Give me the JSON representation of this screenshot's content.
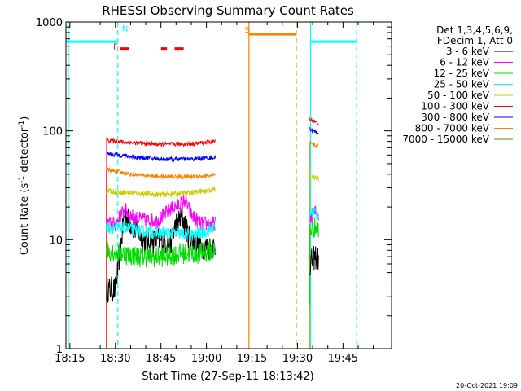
{
  "chart_data": {
    "type": "line",
    "title": "RHESSI Observing Summary Count Rates",
    "xlabel": "Start Time (27-Sep-11 18:13:42)",
    "ylabel_parts": [
      "Count Rate (s",
      "-1",
      " detector",
      "-1",
      ")"
    ],
    "yscale": "log",
    "ylim": [
      1,
      1000
    ],
    "xlim_minutes": [
      1093.7,
      1201.0
    ],
    "x_ticks": [
      {
        "m": 1095,
        "label": "18:15"
      },
      {
        "m": 1110,
        "label": "18:30"
      },
      {
        "m": 1125,
        "label": "18:45"
      },
      {
        "m": 1140,
        "label": "19:00"
      },
      {
        "m": 1155,
        "label": "19:15"
      },
      {
        "m": 1170,
        "label": "19:30"
      },
      {
        "m": 1185,
        "label": "19:45"
      }
    ],
    "y_ticks": [
      {
        "v": 1,
        "label": "1"
      },
      {
        "v": 10,
        "label": "10"
      },
      {
        "v": 100,
        "label": "100"
      },
      {
        "v": 1000,
        "label": "1000"
      }
    ],
    "legend": {
      "position": "right",
      "header": [
        "Det 1,3,4,5,6,9,",
        "FDecim 1, Att 0"
      ],
      "entries": [
        {
          "label": "3 - 6 keV",
          "color": "#000000"
        },
        {
          "label": "6 - 12 keV",
          "color": "#ff00ff"
        },
        {
          "label": "12 - 25 keV",
          "color": "#00dd00"
        },
        {
          "label": "25 - 50 keV",
          "color": "#00ffff"
        },
        {
          "label": "50 - 100 keV",
          "color": "#cccc00"
        },
        {
          "label": "100 - 300 keV",
          "color": "#ff0000"
        },
        {
          "label": "300 - 800 keV",
          "color": "#0000ff"
        },
        {
          "label": "800 - 7000 keV",
          "color": "#ff8000"
        },
        {
          "label": "7000 - 15000 keV",
          "color": "#808000"
        }
      ]
    },
    "segments": [
      {
        "start": 1107.0,
        "end": 1143.0
      },
      {
        "start": 1174.0,
        "end": 1177.0
      }
    ],
    "series": [
      {
        "name": "3 - 6 keV",
        "color": "#000000",
        "noise": 0.12,
        "points": [
          [
            1107.2,
            3.5
          ],
          [
            1110,
            3.5
          ],
          [
            1113,
            17
          ],
          [
            1116,
            13
          ],
          [
            1120,
            9.5
          ],
          [
            1125,
            10
          ],
          [
            1128,
            9
          ],
          [
            1130,
            14
          ],
          [
            1132,
            16
          ],
          [
            1134,
            11
          ],
          [
            1137,
            9
          ],
          [
            1140,
            8.5
          ],
          [
            1143,
            8.5
          ]
        ],
        "points2": [
          [
            1174,
            6
          ],
          [
            1175,
            6.5
          ],
          [
            1176,
            7
          ],
          [
            1177,
            6.5
          ]
        ]
      },
      {
        "name": "6 - 12 keV",
        "color": "#ff00ff",
        "noise": 0.07,
        "points": [
          [
            1107.2,
            14
          ],
          [
            1110,
            14
          ],
          [
            1113,
            19
          ],
          [
            1116,
            16
          ],
          [
            1120,
            15
          ],
          [
            1124,
            15
          ],
          [
            1128,
            19
          ],
          [
            1131,
            21
          ],
          [
            1133,
            23
          ],
          [
            1135,
            17
          ],
          [
            1138,
            14
          ],
          [
            1143,
            14
          ]
        ],
        "points2": [
          [
            1174,
            16
          ],
          [
            1175,
            17
          ],
          [
            1176,
            18
          ],
          [
            1177,
            17
          ]
        ]
      },
      {
        "name": "12 - 25 keV",
        "color": "#00dd00",
        "noise": 0.1,
        "points": [
          [
            1107.2,
            8
          ],
          [
            1112,
            7.5
          ],
          [
            1118,
            7
          ],
          [
            1125,
            7
          ],
          [
            1132,
            7.5
          ],
          [
            1138,
            7.5
          ],
          [
            1143,
            8
          ]
        ],
        "points2": [
          [
            1174,
            12
          ],
          [
            1175,
            13
          ],
          [
            1176,
            13
          ],
          [
            1177,
            12
          ]
        ]
      },
      {
        "name": "25 - 50 keV",
        "color": "#00ffff",
        "noise": 0.06,
        "points": [
          [
            1107.2,
            13
          ],
          [
            1112,
            13
          ],
          [
            1118,
            12
          ],
          [
            1125,
            11.5
          ],
          [
            1130,
            11.5
          ],
          [
            1135,
            11
          ],
          [
            1140,
            12
          ],
          [
            1143,
            13
          ]
        ],
        "points2": [
          [
            1174,
            17
          ],
          [
            1175,
            18
          ],
          [
            1176,
            18
          ],
          [
            1177,
            17
          ]
        ]
      },
      {
        "name": "50 - 100 keV",
        "color": "#cccc00",
        "noise": 0.025,
        "points": [
          [
            1107.2,
            28
          ],
          [
            1115,
            27
          ],
          [
            1125,
            26
          ],
          [
            1135,
            27
          ],
          [
            1143,
            29
          ]
        ],
        "points2": [
          [
            1174,
            38
          ],
          [
            1175,
            38
          ],
          [
            1176,
            37
          ],
          [
            1177,
            36
          ]
        ]
      },
      {
        "name": "100 - 300 keV",
        "color": "#ff0000",
        "noise": 0.02,
        "points": [
          [
            1107.2,
            82
          ],
          [
            1115,
            78
          ],
          [
            1125,
            75
          ],
          [
            1135,
            76
          ],
          [
            1143,
            80
          ]
        ],
        "points2": [
          [
            1174,
            130
          ],
          [
            1175,
            125
          ],
          [
            1176,
            120
          ],
          [
            1177,
            118
          ]
        ]
      },
      {
        "name": "300 - 800 keV",
        "color": "#0000ff",
        "noise": 0.02,
        "points": [
          [
            1107.2,
            62
          ],
          [
            1115,
            58
          ],
          [
            1125,
            55
          ],
          [
            1135,
            55
          ],
          [
            1143,
            57
          ]
        ],
        "points2": [
          [
            1174,
            105
          ],
          [
            1175,
            100
          ],
          [
            1176,
            98
          ],
          [
            1177,
            95
          ]
        ]
      },
      {
        "name": "800 - 7000 keV",
        "color": "#ff8000",
        "noise": 0.02,
        "points": [
          [
            1107.2,
            44
          ],
          [
            1115,
            40
          ],
          [
            1125,
            38
          ],
          [
            1135,
            38
          ],
          [
            1143,
            39
          ]
        ],
        "points2": [
          [
            1174,
            78
          ],
          [
            1175,
            75
          ],
          [
            1176,
            73
          ],
          [
            1177,
            72
          ]
        ]
      }
    ],
    "rise_lines": [
      {
        "color": "#ff8000",
        "x": 1107.0,
        "from": 1,
        "to": 44
      },
      {
        "color": "#ff0000",
        "x": 1107.1,
        "from": 1,
        "to": 85
      },
      {
        "color": "#ff8000",
        "x": 1174.0,
        "from": 1,
        "to": 78
      },
      {
        "color": "#00dd00",
        "x": 1174.1,
        "from": 2.5,
        "to": 12
      }
    ],
    "flags": {
      "solid_vlines": [
        {
          "m": 1094.5,
          "color": "#00ffff"
        },
        {
          "m": 1154.0,
          "color": "#ff8000"
        },
        {
          "m": 1174.3,
          "color": "#00ffff"
        }
      ],
      "dashed_vlines": [
        {
          "m": 1110.8,
          "color": "#00ffff"
        },
        {
          "m": 1169.6,
          "color": "#ff8000"
        },
        {
          "m": 1189.5,
          "color": "#00ffff"
        }
      ],
      "hbars": [
        {
          "from": 1093.7,
          "to": 1110.8,
          "value": 660,
          "color": "#00ffff"
        },
        {
          "from": 1174.3,
          "to": 1189.5,
          "value": 660,
          "color": "#00ffff"
        },
        {
          "from": 1154.0,
          "to": 1169.6,
          "value": 770,
          "color": "#ff8000"
        }
      ],
      "dashes": [
        {
          "from": 1111.5,
          "to": 1114.5,
          "value": 570,
          "color": "#ff0000"
        },
        {
          "from": 1125.0,
          "to": 1127.0,
          "value": 570,
          "color": "#ff0000"
        },
        {
          "from": 1129.5,
          "to": 1132.5,
          "value": 570,
          "color": "#ff0000"
        }
      ],
      "letters": [
        {
          "text": "N",
          "m": 1112.2,
          "value": 820,
          "color": "#00ffff"
        },
        {
          "text": "F",
          "m": 1109.3,
          "value": 560,
          "color": "#ff0000"
        },
        {
          "text": "S",
          "m": 1152.6,
          "value": 800,
          "color": "#ff8000"
        }
      ]
    },
    "footer": "20-Oct-2021 19:09"
  }
}
